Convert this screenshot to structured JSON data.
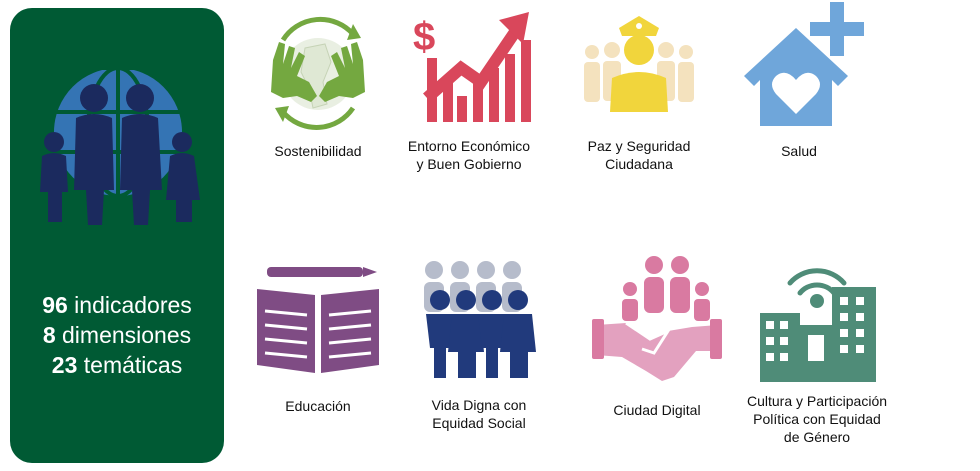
{
  "summary": {
    "stats": [
      {
        "number": "96",
        "label": "indicadores"
      },
      {
        "number": "8",
        "label": "dimensiones"
      },
      {
        "number": "23",
        "label": "temáticas"
      }
    ]
  },
  "dimensions": [
    {
      "label": "Sostenibilidad",
      "icon": "sustainability-hands-globe-icon",
      "color": "#74a840"
    },
    {
      "label": "Entorno Económico\ny Buen Gobierno",
      "icon": "growth-chart-dollar-icon",
      "color": "#d9475b"
    },
    {
      "label": "Paz y Seguridad\nCiudadana",
      "icon": "police-officer-crowd-icon",
      "color": "#f1d53c"
    },
    {
      "label": "Salud",
      "icon": "health-house-heart-icon",
      "color": "#6fa6da"
    },
    {
      "label": "Educación",
      "icon": "open-book-pencil-icon",
      "color": "#7f4c84"
    },
    {
      "label": "Vida Digna con\nEquidad Social",
      "icon": "people-equality-icon",
      "color": "#213a7c"
    },
    {
      "label": "Ciudad Digital",
      "icon": "handshake-family-icon",
      "color": "#d97aa1"
    },
    {
      "label": "Cultura y Participación\nPolítica con Equidad\nde Género",
      "icon": "buildings-wifi-icon",
      "color": "#4f8c78"
    }
  ],
  "colors": {
    "panel": "#005a34",
    "globe": "#3474b4",
    "family": "#1b2a5e"
  }
}
